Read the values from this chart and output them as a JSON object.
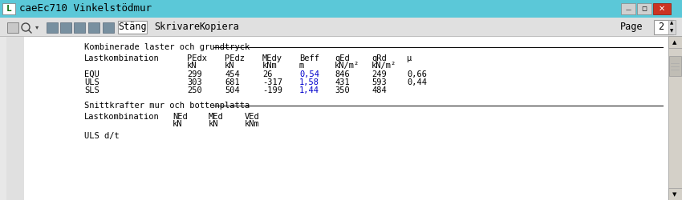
{
  "title_bar_text": "caeEc710 Vinkelstödmur",
  "toolbar_buttons": [
    "Stäng",
    "Skrivare",
    "Kopiera"
  ],
  "page_label": "Page",
  "page_number": "2",
  "section1_title": "Kombinerade laster och grundtryck",
  "section1_headers": [
    "Lastkombination",
    "PEdx",
    "PEdz",
    "MEdy",
    "Beff",
    "qEd",
    "qRd",
    "μ"
  ],
  "section1_units": [
    "",
    "kN",
    "kN",
    "kNm",
    "m",
    "kN/m²",
    "kN/m²",
    ""
  ],
  "section1_rows": [
    [
      "EQU",
      "299",
      "454",
      "26",
      "0,54",
      "846",
      "249",
      "0,66"
    ],
    [
      "ULS",
      "303",
      "681",
      "-317",
      "1,58",
      "431",
      "593",
      "0,44"
    ],
    [
      "SLS",
      "250",
      "504",
      "-199",
      "1,44",
      "350",
      "484",
      ""
    ]
  ],
  "section2_title": "Snittkrafter mur och bottenplatta",
  "section2_headers": [
    "Lastkombination",
    "NEd",
    "MEd",
    "VEd"
  ],
  "section2_units": [
    "",
    "kN",
    "kN",
    "kNm"
  ],
  "section2_partial": "ULS d/t",
  "bg_titlebar": "#5bc8d8",
  "bg_toolbar": "#e0e0e0",
  "bg_content": "#e8e8e8",
  "bg_white": "#ffffff",
  "text_black": "#000000",
  "text_blue": "#0000cc",
  "text_darkred": "#880000",
  "scrollbar_bg": "#d4d0c8",
  "scrollbar_handle": "#c0bdb5",
  "btn_minimize_bg": "#d0d0d0",
  "btn_maximize_bg": "#d0d0d0",
  "btn_close_bg": "#cc3322",
  "font_size": 7.5,
  "font_family": "monospace"
}
